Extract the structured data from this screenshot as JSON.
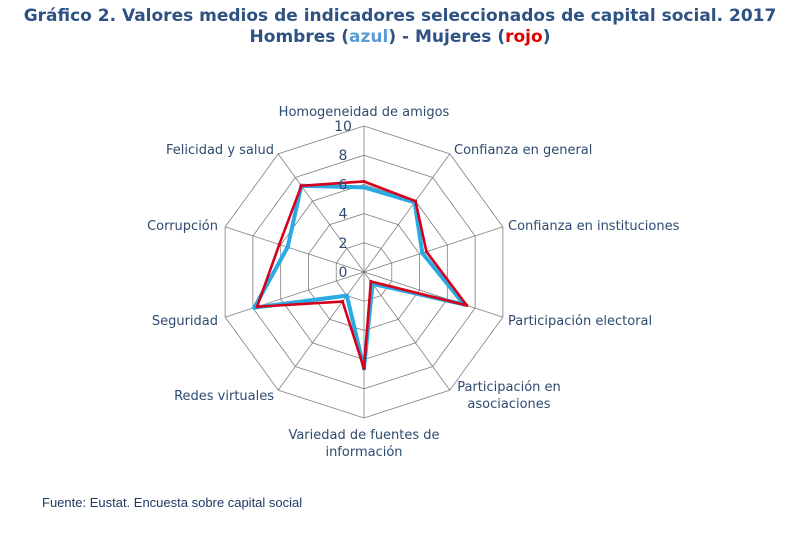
{
  "title": {
    "line1": "Gráfico 2. Valores medios de indicadores seleccionados de capital social. 2017",
    "line2_prefix": "Hombres (",
    "line2_blue": "azul",
    "line2_mid": ") - Mujeres (",
    "line2_red": "rojo",
    "line2_suffix": ")"
  },
  "source": "Fuente: Eustat. Encuesta sobre capital social",
  "colors": {
    "men": "#29aae2",
    "women": "#d6001c",
    "grid": "#7f7f7f",
    "text": "#2e4a70"
  },
  "chart_data": {
    "type": "radar",
    "categories": [
      [
        "Homogeneidad de amigos"
      ],
      [
        "Confianza en general"
      ],
      [
        "Confianza en instituciones"
      ],
      [
        "Participación electoral"
      ],
      [
        "Participación en",
        "asociaciones"
      ],
      [
        "Variedad de fuentes de",
        "información"
      ],
      [
        "Redes virtuales"
      ],
      [
        "Seguridad"
      ],
      [
        "Corrupción"
      ],
      [
        "Felicidad y salud"
      ]
    ],
    "rlim": [
      0,
      10
    ],
    "ticks": [
      "0",
      "2",
      "4",
      "6",
      "8",
      "10"
    ],
    "series": [
      {
        "name": "Hombres",
        "color": "#29aae2",
        "values": [
          5.8,
          5.9,
          4.2,
          7.2,
          1.0,
          6.6,
          2.0,
          7.9,
          5.5,
          7.3
        ]
      },
      {
        "name": "Mujeres",
        "color": "#d6001c",
        "values": [
          6.2,
          6.0,
          4.5,
          7.4,
          0.8,
          6.6,
          2.5,
          7.7,
          6.1,
          7.3
        ]
      }
    ]
  }
}
